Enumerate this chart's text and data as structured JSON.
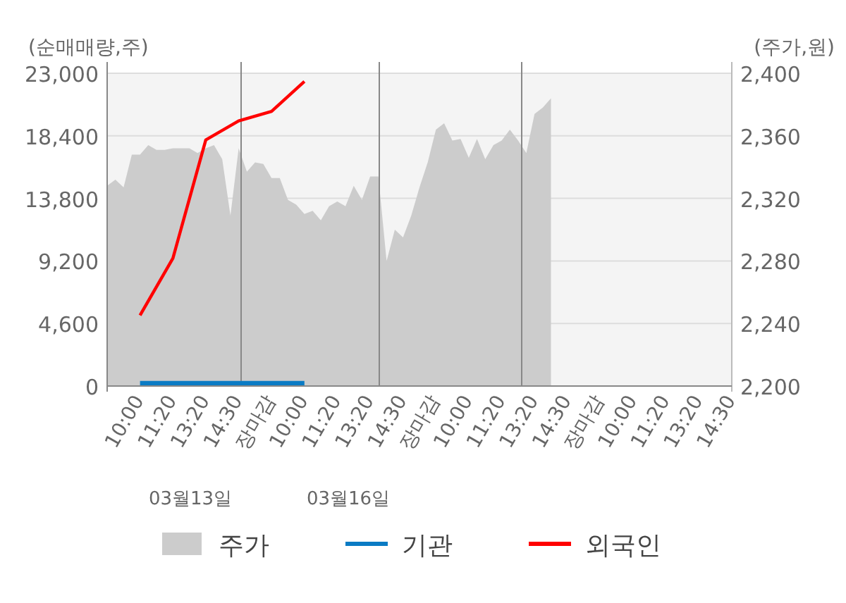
{
  "chart_data": {
    "type": "line",
    "ylabel": "(순매매량,주)",
    "y2label": "(주가,원)",
    "categories": [
      null,
      null,
      null,
      null,
      "10:00",
      null,
      null,
      null,
      "11:20",
      null,
      null,
      null,
      "13:20",
      null,
      null,
      null,
      "14:30",
      null,
      null,
      null,
      "장마감",
      null,
      null,
      null,
      "10:00",
      null,
      null,
      null,
      "11:20",
      null,
      null,
      null,
      "13:20",
      null,
      null,
      null,
      "14:30",
      null,
      null,
      null,
      "장마감",
      null,
      null,
      null,
      "10:00",
      null,
      null,
      null,
      "11:20",
      null,
      null,
      null,
      "13:20",
      null,
      null,
      null,
      "14:30",
      null,
      null,
      null,
      "장마감",
      null,
      null,
      null,
      "10:00",
      null,
      null,
      null,
      "11:20",
      null,
      null,
      null,
      "13:20",
      null,
      null,
      null,
      "14:30"
    ],
    "ylim": [
      0,
      23000
    ],
    "yticks": [
      {
        "value": 0,
        "label": "0"
      },
      {
        "value": 4600,
        "label": "4,600"
      },
      {
        "value": 9200,
        "label": "9,200"
      },
      {
        "value": 13800,
        "label": "13,800"
      },
      {
        "value": 18400,
        "label": "18,400"
      },
      {
        "value": 23000,
        "label": "23,000"
      }
    ],
    "y2lim": [
      2200,
      2400
    ],
    "y2ticks": [
      {
        "value": 2200,
        "label": "2,200"
      },
      {
        "value": 2240,
        "label": "2,240"
      },
      {
        "value": 2280,
        "label": "2,280"
      },
      {
        "value": 2320,
        "label": "2,320"
      },
      {
        "value": 2360,
        "label": "2,360"
      },
      {
        "value": 2400,
        "label": "2,400"
      }
    ],
    "grid": "y",
    "legend": "bottom",
    "annotations": [
      "03월13일",
      "03월16일"
    ],
    "series": [
      {
        "name": "주가",
        "type": "area",
        "axis": "y2",
        "color": "#cccccc",
        "values": [
          2328,
          2332,
          2327,
          2348,
          2348,
          2354,
          2351,
          2351,
          2352,
          2352,
          2352,
          2349,
          2352,
          2354,
          2345,
          2309,
          2352,
          2337,
          2343,
          2342,
          2333,
          2333,
          2319,
          2316,
          2310,
          2312,
          2306,
          2315,
          2318,
          2315,
          2328,
          2319,
          2334,
          2334,
          2280,
          2300,
          2295,
          2309,
          2327,
          2343,
          2364,
          2368,
          2357,
          2358,
          2346,
          2358,
          2345,
          2354,
          2357,
          2364,
          2357,
          2349,
          2374,
          2378,
          2384,
          null,
          null,
          null,
          null,
          null,
          null,
          null,
          null,
          null,
          null,
          null,
          null,
          null,
          null,
          null,
          null,
          null,
          null,
          null,
          null,
          null,
          null
        ]
      },
      {
        "name": "기관",
        "color": "#0a7bc4",
        "values": [
          null,
          null,
          null,
          null,
          200,
          null,
          null,
          null,
          200,
          null,
          null,
          null,
          200,
          null,
          null,
          null,
          200,
          null,
          null,
          null,
          200,
          null,
          null,
          null,
          200,
          null,
          null,
          null,
          null,
          null,
          null,
          null,
          null,
          null,
          null,
          null,
          null,
          null,
          null,
          null,
          null,
          null,
          null,
          null,
          null,
          null,
          null,
          null,
          null,
          null,
          null,
          null,
          null,
          null,
          null,
          null,
          null,
          null,
          null,
          null,
          null,
          null,
          null,
          null,
          null,
          null,
          null,
          null,
          null,
          null,
          null,
          null,
          null,
          null,
          null,
          null,
          null
        ]
      },
      {
        "name": "외국인",
        "color": "#ff0000",
        "values": [
          null,
          null,
          null,
          null,
          5200,
          null,
          null,
          null,
          9400,
          null,
          null,
          null,
          18100,
          null,
          null,
          null,
          19500,
          null,
          null,
          null,
          20200,
          null,
          null,
          null,
          22400,
          null,
          null,
          null,
          null,
          null,
          null,
          null,
          null,
          null,
          null,
          null,
          null,
          null,
          null,
          null,
          null,
          null,
          null,
          null,
          null,
          null,
          null,
          null,
          null,
          null,
          null,
          null,
          null,
          null,
          null,
          null,
          null,
          null,
          null,
          null,
          null,
          null,
          null,
          null,
          null,
          null,
          null,
          null,
          null,
          null,
          null,
          null,
          null,
          null,
          null,
          null,
          null
        ]
      }
    ]
  }
}
